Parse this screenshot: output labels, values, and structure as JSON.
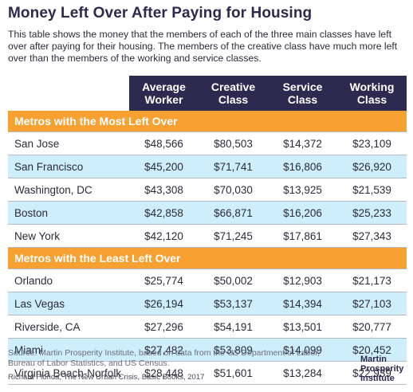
{
  "title": "Money Left Over After Paying for Housing",
  "subtitle": "This table shows the money that the members of each of the three main classes have left over after paying for their housing. The members of the creative class have much more left over than the members of the working and service classes.",
  "source": "Source: Martin Prosperity Institute, based on data from the US Department of Labor, Bureau of Labor Statistics, and US Census.",
  "credit": "Richard Florida, The New Urban Crisis, Basic Books, 2017",
  "logo": {
    "line1": "Martin",
    "line2": "Prosperity",
    "line3": "Institute"
  },
  "colors": {
    "header": "#2e2a4f",
    "section": "#f7a133",
    "alt_row": "#cdeefa"
  },
  "chart_data": {
    "type": "table",
    "columns": [
      "",
      "Average Worker",
      "Creative Class",
      "Service Class",
      "Working Class"
    ],
    "sections": [
      {
        "label": "Metros with the Most Left Over",
        "rows": [
          {
            "city": "San Jose",
            "values": [
              "$48,566",
              "$80,503",
              "$14,372",
              "$23,109"
            ]
          },
          {
            "city": "San Francisco",
            "values": [
              "$45,200",
              "$71,741",
              "$16,806",
              "$26,920"
            ]
          },
          {
            "city": "Washington, DC",
            "values": [
              "$43,308",
              "$70,030",
              "$13,925",
              "$21,539"
            ]
          },
          {
            "city": "Boston",
            "values": [
              "$42,858",
              "$66,871",
              "$16,206",
              "$25,233"
            ]
          },
          {
            "city": "New York",
            "values": [
              "$42,120",
              "$71,245",
              "$17,861",
              "$27,343"
            ]
          }
        ]
      },
      {
        "label": "Metros with the Least Left Over",
        "rows": [
          {
            "city": "Orlando",
            "values": [
              "$25,774",
              "$50,002",
              "$12,903",
              "$21,173"
            ]
          },
          {
            "city": "Las Vegas",
            "values": [
              "$26,194",
              "$53,137",
              "$14,394",
              "$27,103"
            ]
          },
          {
            "city": "Riverside, CA",
            "values": [
              "$27,296",
              "$54,191",
              "$13,501",
              "$20,777"
            ]
          },
          {
            "city": "Miami",
            "values": [
              "$27,482",
              "$53,809",
              "$14,099",
              "$20,452"
            ]
          },
          {
            "city": "Virginia Beach-Norfolk",
            "values": [
              "$28,448",
              "$51,601",
              "$13,284",
              "$22,939"
            ]
          }
        ]
      }
    ]
  }
}
